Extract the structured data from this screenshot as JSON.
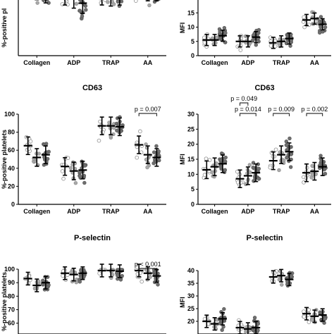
{
  "colors": {
    "open_marker": "#ffffff",
    "light_marker": "#a9a9a9",
    "dark_marker": "#6f6f6f",
    "line": "#000000"
  },
  "chart_data": [
    {
      "type": "scatter",
      "title": "",
      "ylabel": "%-positive pl",
      "categories": [
        "Collagen",
        "ADP",
        "TRAP",
        "AA"
      ],
      "ylim": [
        0,
        100
      ],
      "yticks": [],
      "grid": false,
      "annotations": [],
      "series": [
        {
          "values": [
            65,
            58,
            58,
            68
          ]
        },
        {
          "values": [
            63,
            55,
            57,
            62
          ]
        },
        {
          "values": [
            60,
            50,
            58,
            62
          ]
        }
      ]
    },
    {
      "type": "scatter",
      "title": "",
      "ylabel": "MFI",
      "categories": [
        "Collagen",
        "ADP",
        "TRAP",
        "AA"
      ],
      "ylim": [
        0,
        20
      ],
      "yticks": [
        "0",
        "5",
        "10",
        "15"
      ],
      "grid": false,
      "annotations": [],
      "series": [
        {
          "values": [
            5.5,
            5.0,
            4.5,
            12.5
          ]
        },
        {
          "values": [
            5.5,
            5.0,
            5.0,
            13.0
          ]
        },
        {
          "values": [
            7.0,
            6.5,
            6.0,
            11.0
          ]
        }
      ]
    },
    {
      "type": "scatter",
      "title": "CD63",
      "ylabel": "%-positive platelets",
      "categories": [
        "Collagen",
        "ADP",
        "TRAP",
        "AA"
      ],
      "ylim": [
        0,
        100
      ],
      "yticks": [
        "0",
        "20",
        "40",
        "60",
        "80",
        "100"
      ],
      "grid": false,
      "annotations": [
        {
          "text": "p = 0.007",
          "category": "AA",
          "from_series": 0,
          "to_series": 2
        }
      ],
      "series": [
        {
          "values": [
            65,
            42,
            87,
            66
          ]
        },
        {
          "values": [
            52,
            37,
            87,
            55
          ]
        },
        {
          "values": [
            55,
            38,
            86,
            52
          ]
        }
      ]
    },
    {
      "type": "scatter",
      "title": "CD63",
      "ylabel": "MFI",
      "categories": [
        "Collagen",
        "ADP",
        "TRAP",
        "AA"
      ],
      "ylim": [
        0,
        30
      ],
      "yticks": [
        "0",
        "5",
        "10",
        "15",
        "20",
        "25",
        "30"
      ],
      "grid": false,
      "annotations": [
        {
          "text": "p = 0.049",
          "category": "ADP",
          "from_series": 0,
          "to_series": 1
        },
        {
          "text": "p = 0.014",
          "category": "ADP",
          "from_series": 0,
          "to_series": 2
        },
        {
          "text": "p = 0.009",
          "category": "TRAP",
          "from_series": 0,
          "to_series": 2
        },
        {
          "text": "p = 0.002",
          "category": "AA",
          "from_series": 0,
          "to_series": 2
        }
      ],
      "series": [
        {
          "values": [
            11.5,
            8.5,
            14.5,
            10.5
          ]
        },
        {
          "values": [
            12.5,
            9.5,
            16.5,
            11.0
          ]
        },
        {
          "values": [
            13.5,
            10.5,
            17.5,
            12.5
          ]
        }
      ]
    },
    {
      "type": "scatter",
      "title": "P-selectin",
      "ylabel": "%-positive platelets",
      "categories": [
        "Collagen",
        "ADP",
        "TRAP",
        "AA"
      ],
      "ylim": [
        50,
        100
      ],
      "yticks": [
        "60",
        "70",
        "80",
        "90",
        "100"
      ],
      "grid": false,
      "annotations": [
        {
          "text": "p < 0.001",
          "category": "AA",
          "from_series": 0,
          "to_series": 2
        }
      ],
      "series": [
        {
          "values": [
            93,
            97,
            99,
            99
          ]
        },
        {
          "values": [
            88,
            96,
            99,
            97
          ]
        },
        {
          "values": [
            90,
            97,
            98.5,
            95
          ]
        }
      ]
    },
    {
      "type": "scatter",
      "title": "P-selectin",
      "ylabel": "MFI",
      "categories": [
        "Collagen",
        "ADP",
        "TRAP",
        "AA"
      ],
      "ylim": [
        15,
        40
      ],
      "yticks": [
        "20",
        "25",
        "30",
        "35",
        "40"
      ],
      "grid": false,
      "annotations": [],
      "series": [
        {
          "values": [
            20,
            17.5,
            37.5,
            23
          ]
        },
        {
          "values": [
            19,
            17,
            38,
            22
          ]
        },
        {
          "values": [
            21,
            17.5,
            36.5,
            22.5
          ]
        }
      ]
    }
  ]
}
